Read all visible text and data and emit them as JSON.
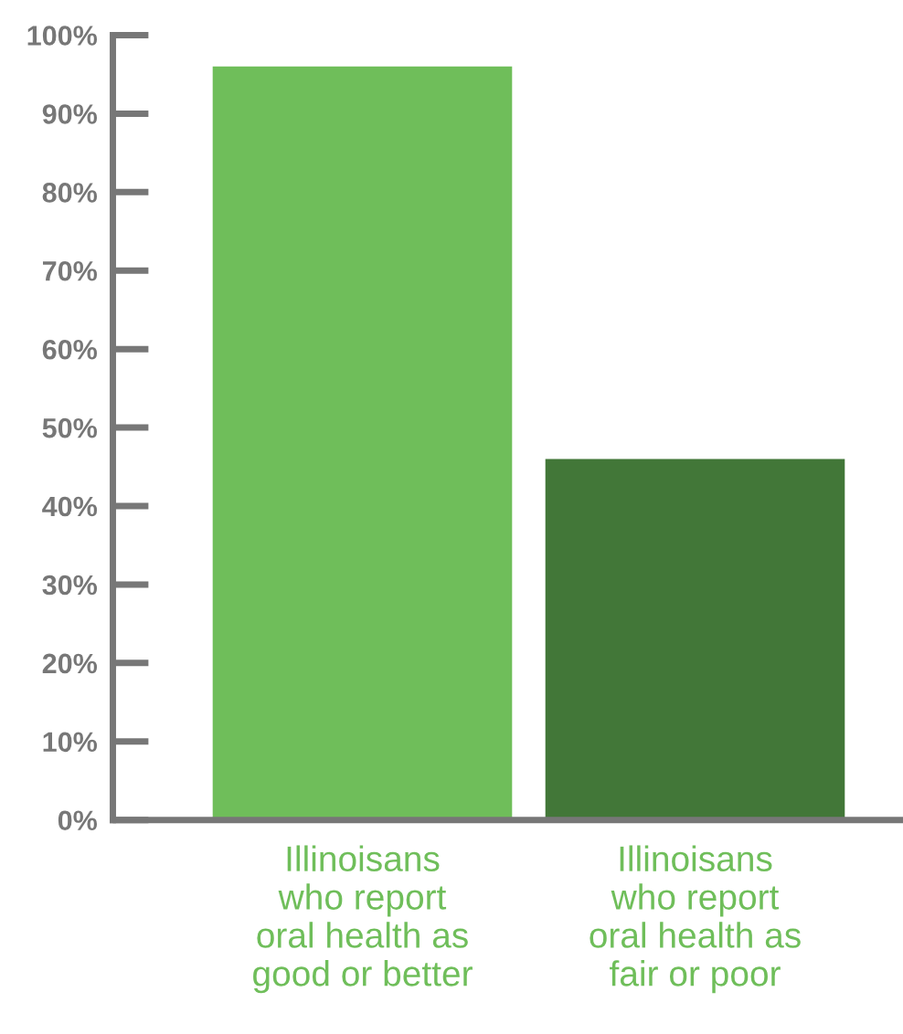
{
  "chart_data": {
    "type": "bar",
    "categories": [
      "Illinoisans\nwho report\noral health as\ngood or better",
      "Illinoisans\nwho report\noral health as\nfair or poor"
    ],
    "values": [
      96,
      46
    ],
    "colors": [
      "#6fbe5a",
      "#427738"
    ],
    "ylim": [
      0,
      100
    ],
    "yticks": [
      {
        "value": 0,
        "label": "0%"
      },
      {
        "value": 10,
        "label": "10%"
      },
      {
        "value": 20,
        "label": "20%"
      },
      {
        "value": 30,
        "label": "30%"
      },
      {
        "value": 40,
        "label": "40%"
      },
      {
        "value": 50,
        "label": "50%"
      },
      {
        "value": 60,
        "label": "60%"
      },
      {
        "value": 70,
        "label": "70%"
      },
      {
        "value": 80,
        "label": "80%"
      },
      {
        "value": 90,
        "label": "90%"
      },
      {
        "value": 100,
        "label": "100%"
      }
    ],
    "grid": false,
    "legend": false
  }
}
